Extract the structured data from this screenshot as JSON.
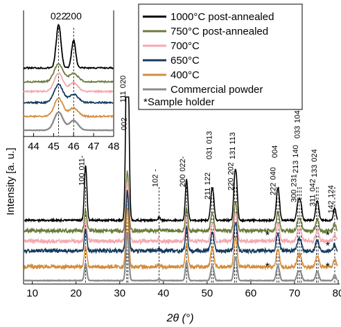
{
  "colors": {
    "s1000": "#000000",
    "s750": "#6b7c3b",
    "s700": "#f4a9b0",
    "s650": "#153a5e",
    "s400": "#d38d3e",
    "commercial": "#8c8c8c"
  },
  "chart_data": [
    {
      "type": "line",
      "xlabel": "2θ (°)",
      "ylabel": "Intensity [a. u.]",
      "xlim": [
        8,
        80
      ],
      "x_ticks": [
        "10",
        "20",
        "30",
        "40",
        "50",
        "60",
        "70",
        "80"
      ],
      "series": [
        {
          "name": "1000°C post-annealed",
          "color_key": "s1000"
        },
        {
          "name": "750°C post-annealed",
          "color_key": "s750"
        },
        {
          "name": "700°C",
          "color_key": "s700"
        },
        {
          "name": "650°C",
          "color_key": "s650"
        },
        {
          "name": "400°C",
          "color_key": "s400"
        },
        {
          "name": "Commercial powder",
          "color_key": "commercial"
        }
      ],
      "legend_note": "*Sample holder",
      "legend_position": "top-right",
      "peaks": [
        {
          "x": 22.2,
          "label": "100",
          "label2": "011-"
        },
        {
          "x": 31.6,
          "label": "111",
          "label2": "020"
        },
        {
          "x": 31.9,
          "label": "002",
          "label2": ""
        },
        {
          "x": 39.0,
          "label": "102",
          "label2": "-"
        },
        {
          "x": 45.3,
          "label": "200",
          "label2": "022-"
        },
        {
          "x": 51.0,
          "label": "211",
          "label2": "122"
        },
        {
          "x": 51.4,
          "label": "031",
          "label2": "013"
        },
        {
          "x": 56.3,
          "label": "220",
          "label2": "202"
        },
        {
          "x": 56.7,
          "label": "131",
          "label2": "113"
        },
        {
          "x": 66.0,
          "label": "222",
          "label2": "040"
        },
        {
          "x": 66.4,
          "label": "004",
          "label2": ""
        },
        {
          "x": 70.7,
          "label": "300",
          "label2": "231"
        },
        {
          "x": 71.1,
          "label": "213",
          "label2": "140"
        },
        {
          "x": 71.5,
          "label": "033",
          "label2": "104"
        },
        {
          "x": 75.0,
          "label": "311",
          "label2": "042"
        },
        {
          "x": 75.4,
          "label": "133",
          "label2": "024"
        },
        {
          "x": 79.2,
          "label": "142",
          "label2": "124"
        }
      ],
      "sample_holder_markers": [
        {
          "x": 63.8,
          "series": "750°C post-annealed"
        },
        {
          "x": 77.6,
          "series": "750°C post-annealed"
        },
        {
          "x": 77.6,
          "series": "650°C"
        },
        {
          "x": 63.8,
          "series": "400°C"
        },
        {
          "x": 77.6,
          "series": "400°C"
        }
      ],
      "marker_symbol": "*"
    },
    {
      "type": "line",
      "inset": true,
      "xlim": [
        43.5,
        48
      ],
      "x_ticks": [
        "44",
        "45",
        "46",
        "47",
        "48"
      ],
      "peak_labels": [
        {
          "x": 45.25,
          "label": "022"
        },
        {
          "x": 46.0,
          "label": "200"
        }
      ]
    }
  ]
}
